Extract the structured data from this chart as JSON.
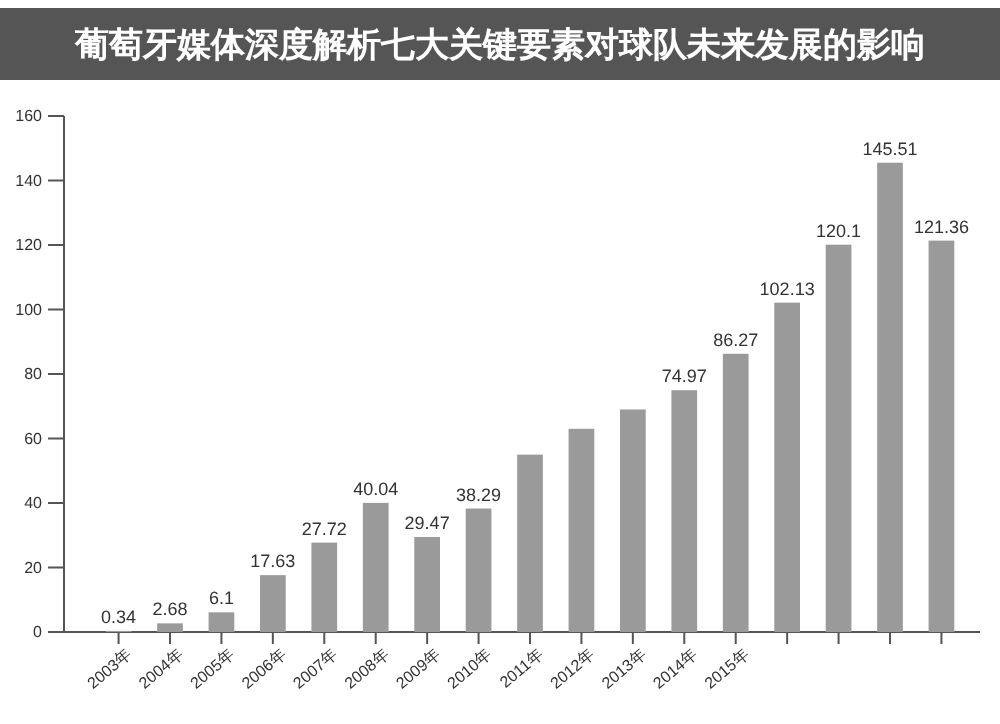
{
  "chart_data": {
    "type": "bar",
    "title": "葡萄牙媒体深度解析七大关键要素对球队未来发展的影响",
    "categories": [
      "2003年",
      "2004年",
      "2005年",
      "2006年",
      "2007年",
      "2008年",
      "2009年",
      "2010年",
      "2011年",
      "2012年",
      "2013年",
      "2014年",
      "2015年",
      null,
      null,
      null,
      null
    ],
    "values": [
      0.34,
      2.68,
      6.1,
      17.63,
      27.72,
      40.04,
      29.47,
      38.29,
      55,
      63,
      69,
      74.97,
      86.27,
      102.13,
      120.1,
      145.51,
      121.36
    ],
    "value_labels": [
      "0.34",
      "2.68",
      "6.1",
      "17.63",
      "27.72",
      "40.04",
      "29.47",
      "38.29",
      null,
      null,
      null,
      "74.97",
      "86.27",
      "102.13",
      "120.1",
      "145.51",
      "121.36"
    ],
    "color": "#9a9a9a",
    "ylim": [
      0,
      160
    ],
    "yticks": [
      0,
      20,
      40,
      60,
      80,
      100,
      120,
      140,
      160
    ],
    "grid": false
  }
}
